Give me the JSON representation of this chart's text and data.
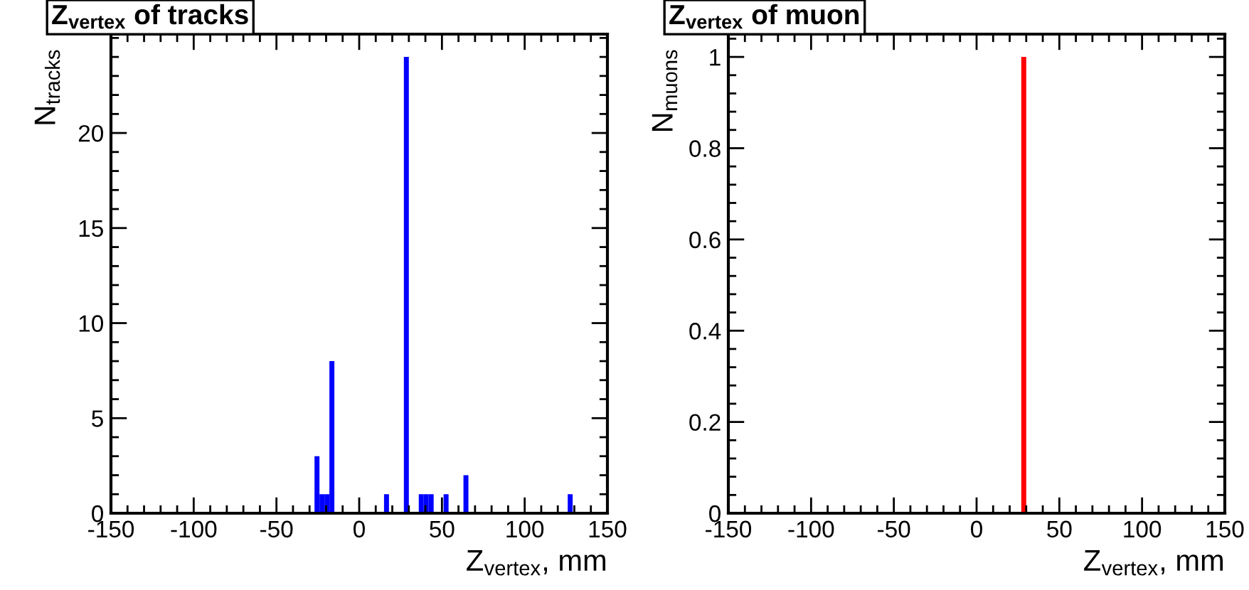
{
  "chart_data": [
    {
      "type": "histogram",
      "title": "Z$_{vertex}$ of tracks",
      "xlabel": "Z$_{vertex}$, mm",
      "ylabel": "N$_{tracks}$",
      "color": "#0000ff",
      "bins": [
        -150,
        -147,
        -144,
        -141,
        -138,
        -135,
        -132,
        -129,
        -126,
        -123,
        -120,
        -117,
        -114,
        -111,
        -108,
        -105,
        -102,
        -99,
        -96,
        -93,
        -90,
        -87,
        -84,
        -81,
        -78,
        -75,
        -72,
        -69,
        -66,
        -63,
        -60,
        -57,
        -54,
        -51,
        -48,
        -45,
        -42,
        -39,
        -36,
        -33,
        -30,
        -27,
        -24,
        -21,
        -18,
        -15,
        -12,
        -9,
        -6,
        -3,
        0,
        3,
        6,
        9,
        12,
        15,
        18,
        21,
        24,
        27,
        30,
        33,
        36,
        39,
        42,
        45,
        48,
        51,
        54,
        57,
        60,
        63,
        66,
        69,
        72,
        75,
        78,
        81,
        84,
        87,
        90,
        93,
        96,
        99,
        102,
        105,
        108,
        111,
        114,
        117,
        120,
        123,
        126,
        129,
        132,
        135,
        138,
        141,
        144,
        147,
        150
      ],
      "values": [
        0,
        0,
        0,
        0,
        0,
        0,
        0,
        0,
        0,
        0,
        0,
        0,
        0,
        0,
        0,
        0,
        0,
        0,
        0,
        0,
        0,
        0,
        0,
        0,
        0,
        0,
        0,
        0,
        0,
        0,
        0,
        0,
        0,
        0,
        0,
        0,
        0,
        0,
        0,
        0,
        0,
        3,
        1,
        1,
        8,
        0,
        0,
        0,
        0,
        0,
        0,
        0,
        0,
        0,
        0,
        1,
        0,
        0,
        0,
        24,
        0,
        0,
        1,
        1,
        1,
        0,
        0,
        1,
        0,
        0,
        0,
        2,
        0,
        0,
        0,
        0,
        0,
        0,
        0,
        0,
        0,
        0,
        0,
        0,
        0,
        0,
        0,
        0,
        0,
        0,
        0,
        0,
        1,
        0,
        0,
        0,
        0,
        0,
        0,
        0
      ],
      "xlim": [
        -150,
        150
      ],
      "xticks": [
        -150,
        -100,
        -50,
        0,
        50,
        100,
        150
      ],
      "ylim": [
        0,
        25.2
      ],
      "yticks": [
        0,
        5,
        10,
        15,
        20
      ],
      "grid": false,
      "legend": false
    },
    {
      "type": "histogram",
      "title": "Z$_{vertex}$ of muon",
      "xlabel": "Z$_{vertex}$, mm",
      "ylabel": "N$_{muons}$",
      "color": "#ff0000",
      "bins": [
        -150,
        -147,
        -144,
        -141,
        -138,
        -135,
        -132,
        -129,
        -126,
        -123,
        -120,
        -117,
        -114,
        -111,
        -108,
        -105,
        -102,
        -99,
        -96,
        -93,
        -90,
        -87,
        -84,
        -81,
        -78,
        -75,
        -72,
        -69,
        -66,
        -63,
        -60,
        -57,
        -54,
        -51,
        -48,
        -45,
        -42,
        -39,
        -36,
        -33,
        -30,
        -27,
        -24,
        -21,
        -18,
        -15,
        -12,
        -9,
        -6,
        -3,
        0,
        3,
        6,
        9,
        12,
        15,
        18,
        21,
        24,
        27,
        30,
        33,
        36,
        39,
        42,
        45,
        48,
        51,
        54,
        57,
        60,
        63,
        66,
        69,
        72,
        75,
        78,
        81,
        84,
        87,
        90,
        93,
        96,
        99,
        102,
        105,
        108,
        111,
        114,
        117,
        120,
        123,
        126,
        129,
        132,
        135,
        138,
        141,
        144,
        147,
        150
      ],
      "values": [
        0,
        0,
        0,
        0,
        0,
        0,
        0,
        0,
        0,
        0,
        0,
        0,
        0,
        0,
        0,
        0,
        0,
        0,
        0,
        0,
        0,
        0,
        0,
        0,
        0,
        0,
        0,
        0,
        0,
        0,
        0,
        0,
        0,
        0,
        0,
        0,
        0,
        0,
        0,
        0,
        0,
        0,
        0,
        0,
        0,
        0,
        0,
        0,
        0,
        0,
        0,
        0,
        0,
        0,
        0,
        0,
        0,
        0,
        0,
        1,
        0,
        0,
        0,
        0,
        0,
        0,
        0,
        0,
        0,
        0,
        0,
        0,
        0,
        0,
        0,
        0,
        0,
        0,
        0,
        0,
        0,
        0,
        0,
        0,
        0,
        0,
        0,
        0,
        0,
        0,
        0,
        0,
        0,
        0,
        0,
        0,
        0,
        0,
        0,
        0
      ],
      "xlim": [
        -150,
        150
      ],
      "xticks": [
        -150,
        -100,
        -50,
        0,
        50,
        100,
        150
      ],
      "ylim": [
        0,
        1.05
      ],
      "yticks": [
        0,
        0.2,
        0.4,
        0.6,
        0.8,
        1
      ],
      "grid": false,
      "legend": false
    }
  ]
}
